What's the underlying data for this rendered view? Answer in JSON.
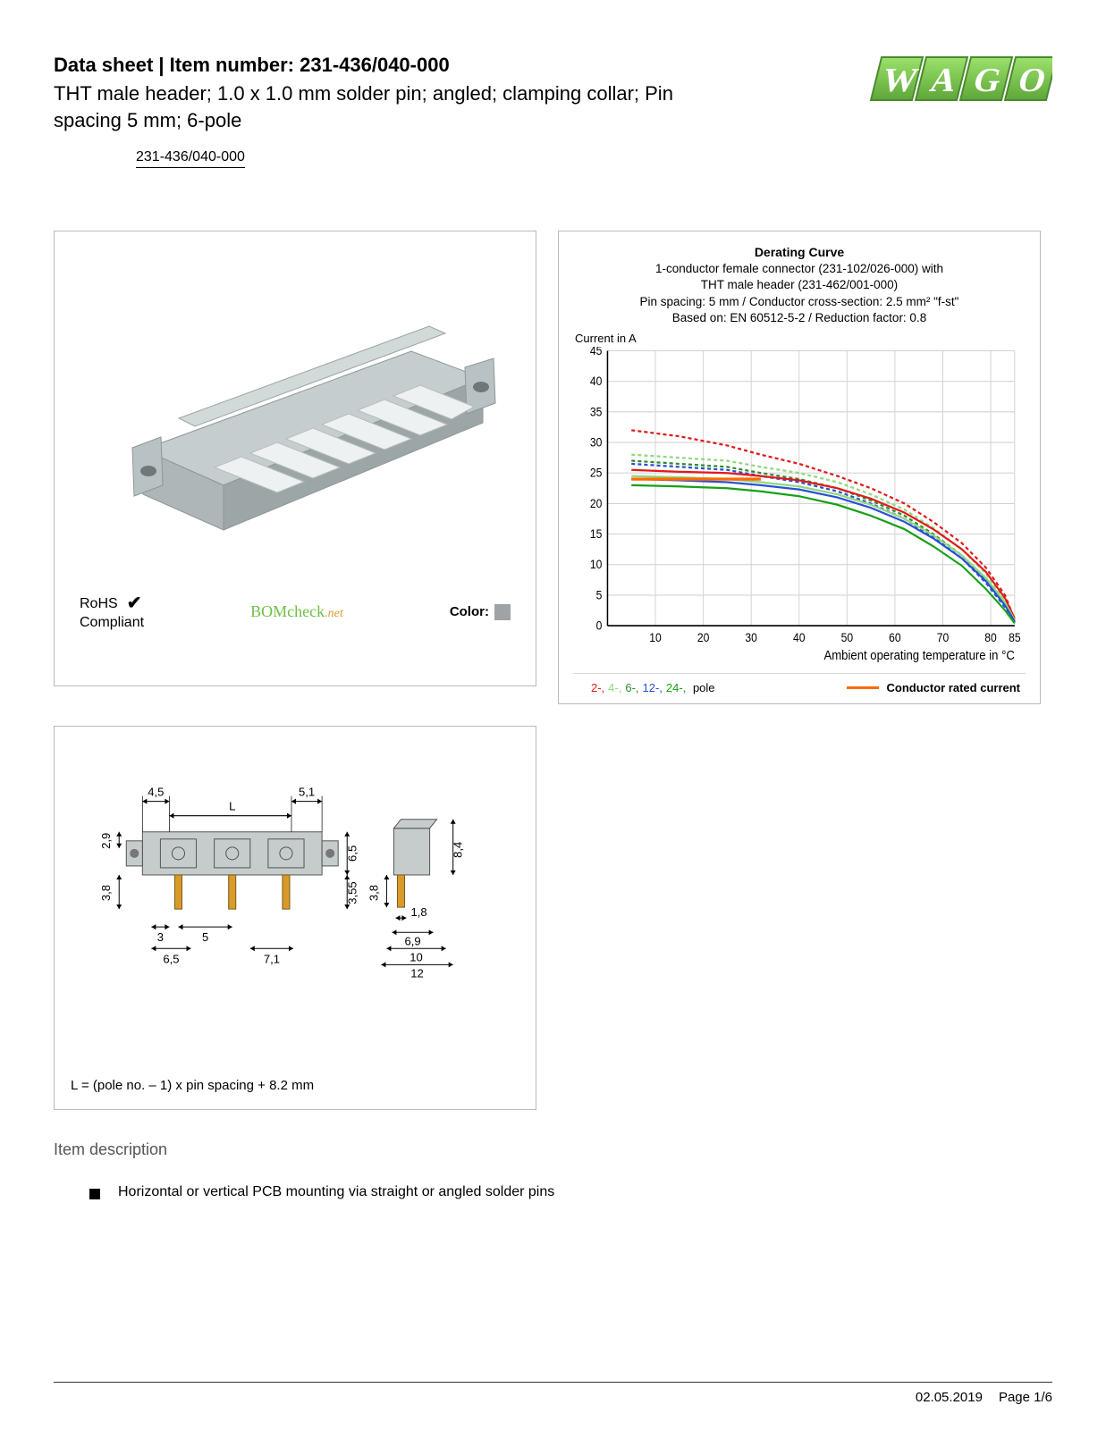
{
  "header": {
    "title": "Data sheet  |  Item number: 231-436/040-000",
    "subtitle": "THT male header; 1.0 x 1.0 mm solder pin; angled; clamping collar; Pin spacing 5 mm; 6-pole",
    "part_link": "231-436/040-000",
    "logo_text": "WAGO",
    "logo_color": "#6fbe44"
  },
  "product_panel": {
    "rohs_line1": "RoHS",
    "rohs_line2": "Compliant",
    "checkmark": "✔",
    "bomcheck": "BOMcheck",
    "bomcheck_suffix": ".net",
    "color_label": "Color:",
    "color_swatch": "#9fa3a6",
    "connector_body_color": "#b8c2c4",
    "connector_pin_color": "#e8e8e8"
  },
  "chart": {
    "title": "Derating Curve",
    "line1": "1-conductor female connector (231-102/026-000) with",
    "line2": "THT male header (231-462/001-000)",
    "line3": "Pin spacing: 5 mm / Conductor cross-section: 2.5 mm² \"f-st\"",
    "line4": "Based on: EN 60512-5-2 / Reduction factor: 0.8",
    "y_label": "Current in A",
    "x_label": "Ambient operating temperature in °C",
    "y_ticks": [
      0,
      5,
      10,
      15,
      20,
      25,
      30,
      35,
      40,
      45
    ],
    "x_ticks": [
      10,
      20,
      30,
      40,
      50,
      60,
      70,
      80,
      85
    ],
    "y_max": 45,
    "x_max": 85,
    "grid_color": "#d4d4d4",
    "axis_color": "#000",
    "bg_color": "#ffffff",
    "series": [
      {
        "name": "2-pole",
        "color": "#e11919",
        "dash": "4,3",
        "points": [
          [
            5,
            32
          ],
          [
            15,
            31
          ],
          [
            25,
            29.5
          ],
          [
            32,
            28
          ],
          [
            40,
            26.5
          ],
          [
            48,
            24.5
          ],
          [
            55,
            22.5
          ],
          [
            62,
            20
          ],
          [
            68,
            17
          ],
          [
            74,
            13.5
          ],
          [
            79,
            9.5
          ],
          [
            83,
            5
          ],
          [
            85,
            1
          ]
        ]
      },
      {
        "name": "4-pole",
        "color": "#8fd97f",
        "dash": "4,3",
        "points": [
          [
            5,
            28
          ],
          [
            15,
            27.5
          ],
          [
            25,
            27
          ],
          [
            32,
            26
          ],
          [
            40,
            25
          ],
          [
            48,
            23.5
          ],
          [
            55,
            21.5
          ],
          [
            62,
            19
          ],
          [
            68,
            16
          ],
          [
            74,
            12.5
          ],
          [
            79,
            8.5
          ],
          [
            83,
            4
          ],
          [
            85,
            0.8
          ]
        ]
      },
      {
        "name": "6-pole",
        "color": "#2e8b2e",
        "dash": "4,3",
        "points": [
          [
            5,
            27
          ],
          [
            15,
            26.5
          ],
          [
            25,
            26
          ],
          [
            32,
            25
          ],
          [
            40,
            24
          ],
          [
            48,
            22.5
          ],
          [
            55,
            20.5
          ],
          [
            62,
            18
          ],
          [
            68,
            15
          ],
          [
            74,
            11.5
          ],
          [
            79,
            7.5
          ],
          [
            83,
            3.5
          ],
          [
            85,
            0.6
          ]
        ]
      },
      {
        "name": "12-pole",
        "color": "#2a4fd6",
        "dash": "4,3",
        "points": [
          [
            5,
            26.5
          ],
          [
            15,
            26
          ],
          [
            25,
            25.5
          ],
          [
            32,
            24.5
          ],
          [
            40,
            23.5
          ],
          [
            48,
            22
          ],
          [
            55,
            20
          ],
          [
            62,
            17.5
          ],
          [
            68,
            14.5
          ],
          [
            74,
            11
          ],
          [
            79,
            7
          ],
          [
            83,
            3
          ],
          [
            85,
            0.5
          ]
        ]
      },
      {
        "name": "2-solid",
        "color": "#e11919",
        "dash": "",
        "points": [
          [
            5,
            25.5
          ],
          [
            15,
            25.2
          ],
          [
            25,
            25
          ],
          [
            32,
            24.5
          ],
          [
            40,
            23.8
          ],
          [
            48,
            22.5
          ],
          [
            55,
            20.8
          ],
          [
            62,
            18.5
          ],
          [
            68,
            15.8
          ],
          [
            74,
            12.5
          ],
          [
            79,
            8.8
          ],
          [
            83,
            4.5
          ],
          [
            85,
            1.2
          ]
        ]
      },
      {
        "name": "4-solid",
        "color": "#8fd97f",
        "dash": "",
        "points": [
          [
            5,
            24.5
          ],
          [
            15,
            24.3
          ],
          [
            25,
            24
          ],
          [
            32,
            23.5
          ],
          [
            40,
            22.8
          ],
          [
            48,
            21.5
          ],
          [
            55,
            19.8
          ],
          [
            62,
            17.5
          ],
          [
            68,
            14.8
          ],
          [
            74,
            11.5
          ],
          [
            79,
            7.8
          ],
          [
            83,
            3.8
          ],
          [
            85,
            0.9
          ]
        ]
      },
      {
        "name": "12-solid",
        "color": "#2a4fd6",
        "dash": "",
        "points": [
          [
            5,
            24
          ],
          [
            15,
            23.8
          ],
          [
            25,
            23.5
          ],
          [
            32,
            23
          ],
          [
            40,
            22.3
          ],
          [
            48,
            21
          ],
          [
            55,
            19.3
          ],
          [
            62,
            17
          ],
          [
            68,
            14.3
          ],
          [
            74,
            11
          ],
          [
            79,
            7.3
          ],
          [
            83,
            3.3
          ],
          [
            85,
            0.7
          ]
        ]
      },
      {
        "name": "24-solid",
        "color": "#18a018",
        "dash": "",
        "points": [
          [
            5,
            23
          ],
          [
            15,
            22.8
          ],
          [
            25,
            22.5
          ],
          [
            32,
            22
          ],
          [
            40,
            21.2
          ],
          [
            48,
            19.8
          ],
          [
            55,
            18
          ],
          [
            62,
            15.8
          ],
          [
            68,
            13
          ],
          [
            74,
            9.8
          ],
          [
            79,
            6
          ],
          [
            83,
            2.5
          ],
          [
            85,
            0.4
          ]
        ]
      }
    ],
    "rated_current": {
      "color": "#ff6a00",
      "y": 24,
      "x_from": 5,
      "x_to": 32
    },
    "legend_poles": [
      {
        "label": "2-",
        "color": "#e11919"
      },
      {
        "label": "4-",
        "color": "#8fd97f"
      },
      {
        "label": "6-",
        "color": "#2e8b2e"
      },
      {
        "label": "12-",
        "color": "#2a4fd6"
      },
      {
        "label": "24-",
        "color": "#18a018"
      }
    ],
    "legend_poles_suffix": " pole",
    "legend_rated": "Conductor rated current"
  },
  "dimension_panel": {
    "caption": "L = (pole no. – 1) x pin spacing + 8.2 mm",
    "labels": {
      "d45": "4,5",
      "d51": "5,1",
      "dL": "L",
      "d29": "2,9",
      "d65v": "6,5",
      "d38": "3,8",
      "d3": "3",
      "d5": "5",
      "d65": "6,5",
      "d71": "7,1",
      "d355": "3,55",
      "d84": "8,4",
      "d18": "1,8",
      "d69": "6,9",
      "d10": "10",
      "d12": "12",
      "d38b": "3,8"
    },
    "body_fill": "#c6cccc",
    "pin_fill": "#d89b2a",
    "line_color": "#000"
  },
  "description": {
    "heading": "Item description",
    "bullet1": "Horizontal or vertical PCB mounting via straight or angled solder pins"
  },
  "footer": {
    "date": "02.05.2019",
    "page": "Page 1/6"
  }
}
